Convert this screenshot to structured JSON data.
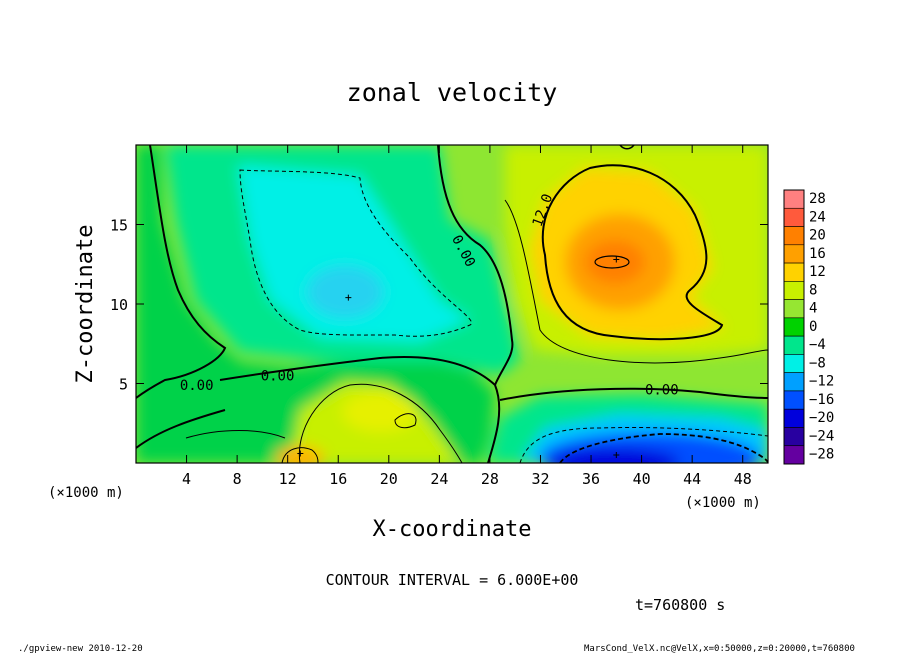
{
  "chart_data": {
    "type": "heatmap",
    "title": "zonal velocity",
    "xlabel": "X-coordinate",
    "ylabel": "Z-coordinate",
    "x_unit": "(×1000 m)",
    "y_unit": "(×1000 m)",
    "xlim": [
      0,
      50
    ],
    "ylim": [
      0,
      20
    ],
    "x_ticks": [
      4,
      8,
      12,
      16,
      20,
      24,
      28,
      32,
      36,
      40,
      44,
      48
    ],
    "y_ticks": [
      5,
      10,
      15
    ],
    "colorbar": {
      "levels": [
        28,
        24,
        20,
        16,
        12,
        8,
        4,
        0,
        -4,
        -8,
        -12,
        -16,
        -20,
        -24,
        -28
      ],
      "labels": [
        "28",
        "24",
        "20",
        "16",
        "12",
        "8",
        "4",
        "0",
        "−4",
        "−8",
        "−12",
        "−16",
        "−20",
        "−24",
        "−28"
      ],
      "colors": [
        "#ff8080",
        "#ff5a3c",
        "#ff8000",
        "#ffa000",
        "#ffd200",
        "#c8f000",
        "#96e632",
        "#00d200",
        "#00e68c",
        "#00f0e6",
        "#00a0ff",
        "#0050ff",
        "#0000dc",
        "#2800a0",
        "#6400a0"
      ]
    },
    "contour_labels": [
      {
        "text": "0.00",
        "x": 4.8,
        "z": 4.6,
        "rot": 0
      },
      {
        "text": "0.00",
        "x": 11.2,
        "z": 5.2,
        "rot": 0
      },
      {
        "text": "0.00",
        "x": 25.6,
        "z": 13.2,
        "rot": 62
      },
      {
        "text": "12.0",
        "x": 32.5,
        "z": 15.8,
        "rot": -70
      },
      {
        "text": "0.00",
        "x": 41.6,
        "z": 4.3,
        "rot": 0
      }
    ],
    "features": [
      {
        "kind": "max",
        "x": 38,
        "z": 12.8,
        "value": 18
      },
      {
        "kind": "max",
        "x": 13,
        "z": 0.6,
        "value": 13
      },
      {
        "kind": "min",
        "x": 16.8,
        "z": 10.4,
        "value": -11
      },
      {
        "kind": "min",
        "x": 38,
        "z": 0.5,
        "value": -22
      }
    ],
    "contour_interval": "CONTOUR INTERVAL = 6.000E+00",
    "time": "t=760800 s"
  },
  "footer": {
    "program": "./gpview-new  2010-12-20",
    "source": "MarsCond_VelX.nc@VelX,x=0:50000,z=0:20000,t=760800"
  }
}
